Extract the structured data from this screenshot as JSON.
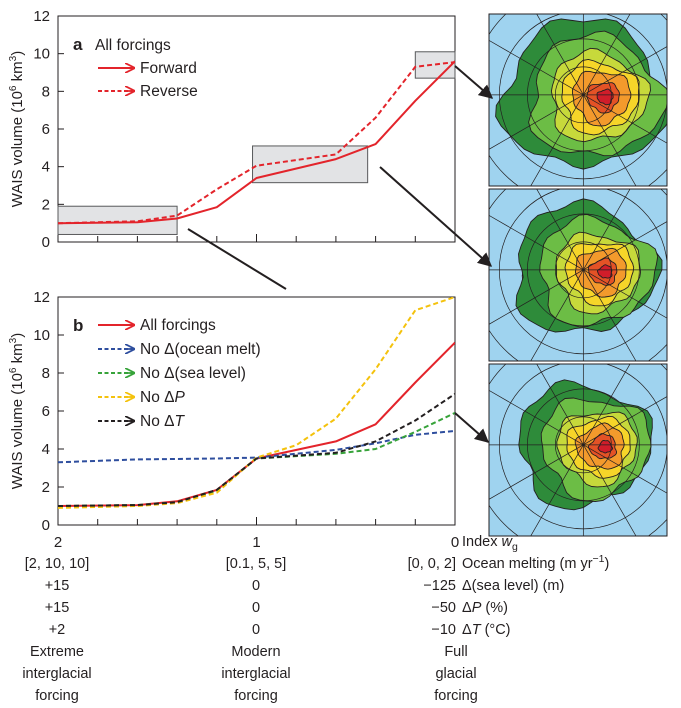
{
  "chart_data": [
    {
      "panel": "a",
      "type": "line",
      "panel_label": "a",
      "legend_title": "All forcings",
      "legend_placement": "top-left",
      "ylabel": "WAIS volume (10",
      "ylabel_sup": "6",
      "ylabel_unit": " km",
      "ylabel_sup2": "3",
      "ylabel_close": ")",
      "ylim": [
        0,
        12
      ],
      "yticks": [
        "0",
        "2",
        "4",
        "6",
        "8",
        "10",
        "12"
      ],
      "xlim": [
        2,
        0
      ],
      "series": [
        {
          "name": "Forward",
          "color": "#e3242b",
          "dash": "solid",
          "x": [
            2.0,
            1.6,
            1.4,
            1.2,
            1.0,
            0.6,
            0.4,
            0.2,
            0.0
          ],
          "y": [
            1.0,
            1.05,
            1.25,
            1.85,
            3.4,
            4.4,
            5.2,
            7.5,
            9.6
          ]
        },
        {
          "name": "Reverse",
          "color": "#e3242b",
          "dash": "dashed",
          "x": [
            2.0,
            1.6,
            1.4,
            1.2,
            1.0,
            0.6,
            0.4,
            0.2,
            0.0
          ],
          "y": [
            1.0,
            1.1,
            1.4,
            2.8,
            4.05,
            4.65,
            6.6,
            9.3,
            9.55
          ]
        }
      ],
      "highlight_boxes": [
        {
          "x": [
            2.0,
            1.4
          ],
          "y": [
            0.4,
            1.9
          ]
        },
        {
          "x": [
            1.02,
            0.44
          ],
          "y": [
            3.15,
            5.1
          ]
        },
        {
          "x": [
            0.2,
            0.0
          ],
          "y": [
            8.7,
            10.1
          ]
        }
      ]
    },
    {
      "panel": "b",
      "type": "line",
      "panel_label": "b",
      "legend_placement": "top-left",
      "ylabel": "WAIS volume (10",
      "ylabel_sup": "6",
      "ylabel_unit": " km",
      "ylabel_sup2": "3",
      "ylabel_close": ")",
      "ylim": [
        0,
        12
      ],
      "yticks": [
        "0",
        "2",
        "4",
        "6",
        "8",
        "10",
        "12"
      ],
      "xlim": [
        2,
        0
      ],
      "xticks": [
        {
          "x": 2,
          "label": "2"
        },
        {
          "x": 1,
          "label": "1"
        },
        {
          "x": 0,
          "label": "0"
        }
      ],
      "series": [
        {
          "name": "All forcings",
          "color": "#e3242b",
          "dash": "solid",
          "x": [
            2.0,
            1.6,
            1.4,
            1.2,
            1.0,
            0.6,
            0.4,
            0.2,
            0.0
          ],
          "y": [
            1.0,
            1.05,
            1.25,
            1.85,
            3.5,
            4.4,
            5.3,
            7.5,
            9.6
          ]
        },
        {
          "name": "No Δ(ocean melt)",
          "color": "#2e4e9e",
          "dash": "dashed",
          "x": [
            2.0,
            1.6,
            1.2,
            1.0,
            0.6,
            0.4,
            0.2,
            0.0
          ],
          "y": [
            3.3,
            3.45,
            3.5,
            3.55,
            3.95,
            4.3,
            4.75,
            4.95
          ]
        },
        {
          "name": "No Δ(sea level)",
          "color": "#37a33a",
          "dash": "dashed",
          "x": [
            2.0,
            1.6,
            1.4,
            1.2,
            1.0,
            0.6,
            0.4,
            0.2,
            0.0
          ],
          "y": [
            1.0,
            1.05,
            1.2,
            1.8,
            3.5,
            3.75,
            4.0,
            4.9,
            5.9
          ]
        },
        {
          "name": "No ΔP",
          "color": "#f4c20d",
          "dash": "dashed",
          "x": [
            2.0,
            1.6,
            1.4,
            1.2,
            1.0,
            0.8,
            0.6,
            0.4,
            0.2,
            0.0
          ],
          "y": [
            0.9,
            1.0,
            1.15,
            1.7,
            3.55,
            4.2,
            5.6,
            8.2,
            11.3,
            12.0
          ]
        },
        {
          "name": "No ΔT",
          "color": "#231f20",
          "dash": "dashed",
          "x": [
            2.0,
            1.6,
            1.4,
            1.2,
            1.0,
            0.6,
            0.4,
            0.2,
            0.0
          ],
          "y": [
            1.0,
            1.05,
            1.2,
            1.85,
            3.5,
            3.8,
            4.4,
            5.5,
            6.9
          ]
        }
      ]
    }
  ],
  "x_conditions": {
    "columns": [
      {
        "index": "2",
        "ocean_melting": "[2, 10, 10]",
        "sea_level": "+15",
        "dP": "+15",
        "dT": "+2",
        "caption_lines": [
          "Extreme",
          "interglacial",
          "forcing"
        ]
      },
      {
        "index": "1",
        "ocean_melting": "[0.1, 5, 5]",
        "sea_level": "0",
        "dP": "0",
        "dT": "0",
        "caption_lines": [
          "Modern",
          "interglacial",
          "forcing"
        ]
      },
      {
        "index": "0",
        "ocean_melting": "[0, 0, 2]",
        "sea_level": "−125",
        "dP": "−50",
        "dT": "−10",
        "caption_lines": [
          "Full",
          "glacial",
          "forcing"
        ]
      }
    ],
    "row_labels": {
      "index": "Index ",
      "index_var": "w",
      "index_sub": "g",
      "ocean_melting": "Ocean melting (m yr",
      "ocean_melting_sup": "−1",
      "ocean_melting_close": ")",
      "sea_level": "Δ(sea level) (m)",
      "dP": "Δ",
      "dP_var": "P",
      "dP_unit": " (%)",
      "dT": "Δ",
      "dT_var": "T",
      "dT_unit": " (°C)"
    }
  },
  "maps": [
    {
      "name": "map-full-glacial",
      "ocean_color": "#9fd3ef"
    },
    {
      "name": "map-modern",
      "ocean_color": "#9fd3ef"
    },
    {
      "name": "map-extreme-interglacial",
      "ocean_color": "#9fd3ef"
    }
  ],
  "colors": {
    "red": "#e3242b",
    "blue": "#2e4e9e",
    "green": "#37a33a",
    "yellow": "#f4c20d",
    "black": "#231f20",
    "box": "#e2e3e5",
    "ocean": "#9fd3ef"
  }
}
